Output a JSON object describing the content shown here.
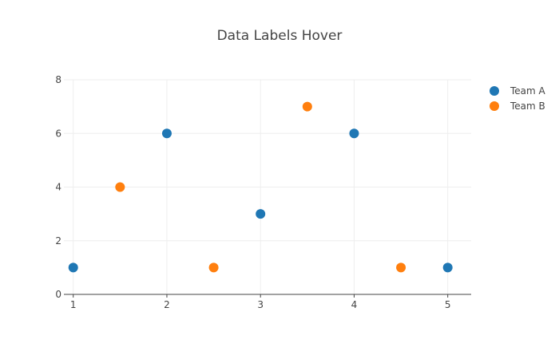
{
  "chart_data": {
    "type": "scatter",
    "title": "Data Labels Hover",
    "xlabel": "",
    "ylabel": "",
    "xlim": [
      0.9,
      5.25
    ],
    "ylim": [
      0,
      8
    ],
    "x_ticks": [
      "1",
      "2",
      "3",
      "4",
      "5"
    ],
    "y_ticks": [
      "0",
      "2",
      "4",
      "6",
      "8"
    ],
    "grid": true,
    "legend_position": "top-right",
    "series": [
      {
        "name": "Team A",
        "color": "#1f77b4",
        "x": [
          1,
          2,
          3,
          4,
          5
        ],
        "y": [
          1,
          6,
          3,
          6,
          1
        ]
      },
      {
        "name": "Team B",
        "color": "#ff7f0e",
        "x": [
          1.5,
          2.5,
          3.5,
          4.5
        ],
        "y": [
          4,
          1,
          7,
          1
        ]
      }
    ]
  }
}
